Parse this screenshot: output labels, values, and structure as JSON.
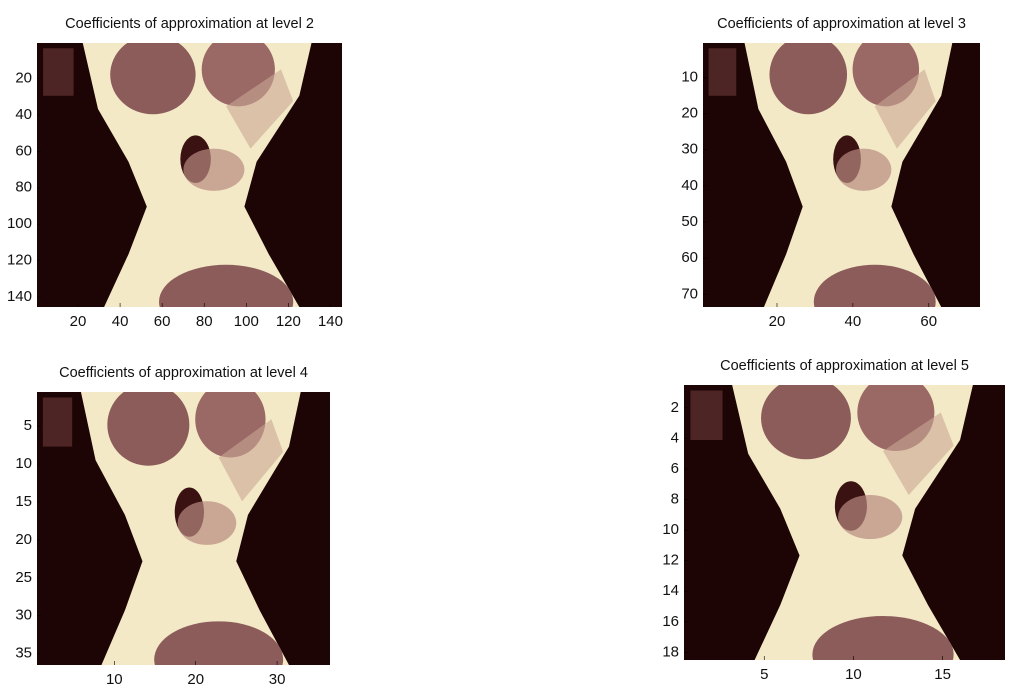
{
  "chart_data": [
    {
      "type": "image",
      "title": "Coefficients of approximation at level 2",
      "xlim": [
        0.5,
        145.5
      ],
      "ylim": [
        145.5,
        0.5
      ],
      "xticks": [
        20,
        40,
        60,
        80,
        100,
        120,
        140
      ],
      "yticks": [
        20,
        40,
        60,
        80,
        100,
        120,
        140
      ]
    },
    {
      "type": "image",
      "title": "Coefficients of approximation at level 3",
      "xlim": [
        0.5,
        73.5
      ],
      "ylim": [
        73.5,
        0.5
      ],
      "xticks": [
        20,
        40,
        60
      ],
      "yticks": [
        10,
        20,
        30,
        40,
        50,
        60,
        70
      ]
    },
    {
      "type": "image",
      "title": "Coefficients of approximation at level 4",
      "xlim": [
        0.5,
        36.5
      ],
      "ylim": [
        36.5,
        0.5
      ],
      "xticks": [
        10,
        20,
        30
      ],
      "yticks": [
        5,
        10,
        15,
        20,
        25,
        30,
        35
      ]
    },
    {
      "type": "image",
      "title": "Coefficients of approximation at level 5",
      "xlim": [
        0.5,
        18.5
      ],
      "ylim": [
        18.5,
        0.5
      ],
      "xticks": [
        5,
        10,
        15
      ],
      "yticks": [
        2,
        4,
        6,
        8,
        10,
        12,
        14,
        16,
        18
      ]
    }
  ]
}
